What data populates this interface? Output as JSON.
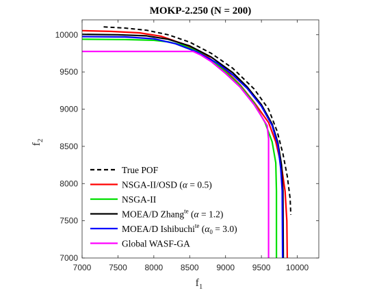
{
  "chart_data": {
    "type": "line",
    "title": "MOKP-2.250 (N = 200)",
    "xlabel": {
      "main": "f",
      "sub": "1"
    },
    "ylabel": {
      "main": "f",
      "sub": "2"
    },
    "xlim": [
      7000,
      10300
    ],
    "ylim": [
      7000,
      10200
    ],
    "xticks": [
      7000,
      7500,
      8000,
      8500,
      9000,
      9500,
      10000
    ],
    "yticks": [
      7000,
      7500,
      8000,
      8500,
      9000,
      9500,
      10000
    ],
    "grid": false,
    "legend_position": "lower-left",
    "series": [
      {
        "key": "true",
        "color": "#000000",
        "dashed": true,
        "legend": {
          "text": "True POF",
          "math": []
        },
        "points": [
          [
            7300,
            10105
          ],
          [
            7600,
            10090
          ],
          [
            7900,
            10060
          ],
          [
            8200,
            10000
          ],
          [
            8500,
            9900
          ],
          [
            8800,
            9750
          ],
          [
            9100,
            9550
          ],
          [
            9400,
            9270
          ],
          [
            9600,
            9000
          ],
          [
            9720,
            8700
          ],
          [
            9800,
            8400
          ],
          [
            9860,
            8100
          ],
          [
            9900,
            7800
          ],
          [
            9910,
            7580
          ]
        ]
      },
      {
        "key": "nsga_osd",
        "color": "#ff0000",
        "dashed": false,
        "legend": {
          "text": "NSGA-II/OSD (",
          "math": [
            {
              "t": "α",
              "i": true
            },
            {
              "t": " = 0.5)"
            }
          ]
        },
        "points": [
          [
            7000,
            10055
          ],
          [
            7400,
            10045
          ],
          [
            7800,
            10025
          ],
          [
            8100,
            9980
          ],
          [
            8400,
            9880
          ],
          [
            8700,
            9740
          ],
          [
            9000,
            9520
          ],
          [
            9200,
            9330
          ],
          [
            9400,
            9090
          ],
          [
            9600,
            8820
          ],
          [
            9700,
            8560
          ],
          [
            9780,
            8230
          ],
          [
            9830,
            7900
          ],
          [
            9855,
            7500
          ],
          [
            9860,
            7000
          ]
        ]
      },
      {
        "key": "nsga",
        "color": "#00e000",
        "dashed": false,
        "legend": {
          "text": "NSGA-II",
          "math": []
        },
        "points": [
          [
            7000,
            9940
          ],
          [
            7600,
            9935
          ],
          [
            8000,
            9925
          ],
          [
            8200,
            9905
          ],
          [
            8400,
            9860
          ],
          [
            8600,
            9780
          ],
          [
            8800,
            9660
          ],
          [
            9000,
            9500
          ],
          [
            9200,
            9320
          ],
          [
            9400,
            9080
          ],
          [
            9550,
            8820
          ],
          [
            9650,
            8560
          ],
          [
            9700,
            8280
          ],
          [
            9710,
            7900
          ],
          [
            9710,
            7000
          ]
        ]
      },
      {
        "key": "zhang",
        "color": "#000000",
        "dashed": false,
        "legend": {
          "text": "MOEA/D Zhang",
          "math": [
            {
              "t": "te",
              "sup": true
            },
            {
              "t": " ("
            },
            {
              "t": "α",
              "i": true
            },
            {
              "t": " = 1.2)"
            }
          ]
        },
        "points": [
          [
            7000,
            10005
          ],
          [
            7500,
            10000
          ],
          [
            7900,
            9985
          ],
          [
            8200,
            9940
          ],
          [
            8500,
            9850
          ],
          [
            8800,
            9700
          ],
          [
            9100,
            9490
          ],
          [
            9300,
            9300
          ],
          [
            9500,
            9060
          ],
          [
            9650,
            8800
          ],
          [
            9730,
            8550
          ],
          [
            9780,
            8250
          ],
          [
            9800,
            7900
          ],
          [
            9805,
            7000
          ]
        ]
      },
      {
        "key": "ishibuchi",
        "color": "#0000ff",
        "dashed": false,
        "legend": {
          "text": "MOEA/D Ishibuchi",
          "math": [
            {
              "t": "te",
              "sup": true
            },
            {
              "t": " ("
            },
            {
              "t": "α",
              "i": true
            },
            {
              "t": "0",
              "sub": true
            },
            {
              "t": " = 3.0)"
            }
          ]
        },
        "points": [
          [
            7000,
            9975
          ],
          [
            7600,
            9970
          ],
          [
            8000,
            9945
          ],
          [
            8300,
            9880
          ],
          [
            8600,
            9770
          ],
          [
            8900,
            9610
          ],
          [
            9100,
            9460
          ],
          [
            9300,
            9280
          ],
          [
            9500,
            9040
          ],
          [
            9650,
            8780
          ],
          [
            9730,
            8520
          ],
          [
            9770,
            8200
          ],
          [
            9790,
            7900
          ],
          [
            9795,
            7000
          ]
        ]
      },
      {
        "key": "wasf",
        "color": "#ff00ff",
        "dashed": false,
        "legend": {
          "text": "Global WASF-GA",
          "math": []
        },
        "points": [
          [
            7000,
            9775
          ],
          [
            8000,
            9775
          ],
          [
            8550,
            9775
          ],
          [
            8650,
            9730
          ],
          [
            8800,
            9640
          ],
          [
            9000,
            9480
          ],
          [
            9200,
            9300
          ],
          [
            9400,
            9060
          ],
          [
            9580,
            8780
          ],
          [
            9600,
            8600
          ],
          [
            9600,
            7000
          ]
        ]
      }
    ]
  }
}
